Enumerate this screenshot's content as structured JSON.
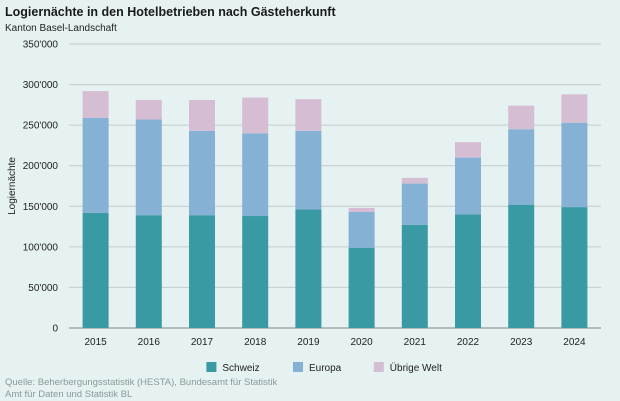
{
  "chart_data": {
    "type": "bar",
    "stacked": true,
    "title": "Logiernächte in den Hotelbetrieben nach Gästeherkunft",
    "subtitle": "Kanton Basel-Landschaft",
    "ylabel": "Logiernächte",
    "xlabel": "",
    "ylim": [
      0,
      350000
    ],
    "yticks": [
      0,
      50000,
      100000,
      150000,
      200000,
      250000,
      300000,
      350000
    ],
    "ytick_labels": [
      "0",
      "50'000",
      "100'000",
      "150'000",
      "200'000",
      "250'000",
      "300'000",
      "350'000"
    ],
    "grid": true,
    "legend_position": "bottom",
    "categories": [
      "2015",
      "2016",
      "2017",
      "2018",
      "2019",
      "2020",
      "2021",
      "2022",
      "2023",
      "2024"
    ],
    "series": [
      {
        "name": "Schweiz",
        "color": "#3a9aa3",
        "values": [
          142000,
          139000,
          139000,
          138000,
          146000,
          99000,
          127000,
          140000,
          152000,
          149000
        ]
      },
      {
        "name": "Europa",
        "color": "#85b1d5",
        "values": [
          117000,
          118000,
          104000,
          102000,
          97000,
          44000,
          51000,
          70000,
          93000,
          104000
        ]
      },
      {
        "name": "Übrige Welt",
        "color": "#d5bdd3",
        "values": [
          33000,
          24000,
          38000,
          44000,
          39000,
          5000,
          7000,
          19000,
          29000,
          35000
        ]
      }
    ]
  },
  "source": {
    "line1": "Quelle: Beherbergungsstatistik (HESTA), Bundesamt für Statistik",
    "line2": "Amt für Daten und Statistik BL"
  }
}
